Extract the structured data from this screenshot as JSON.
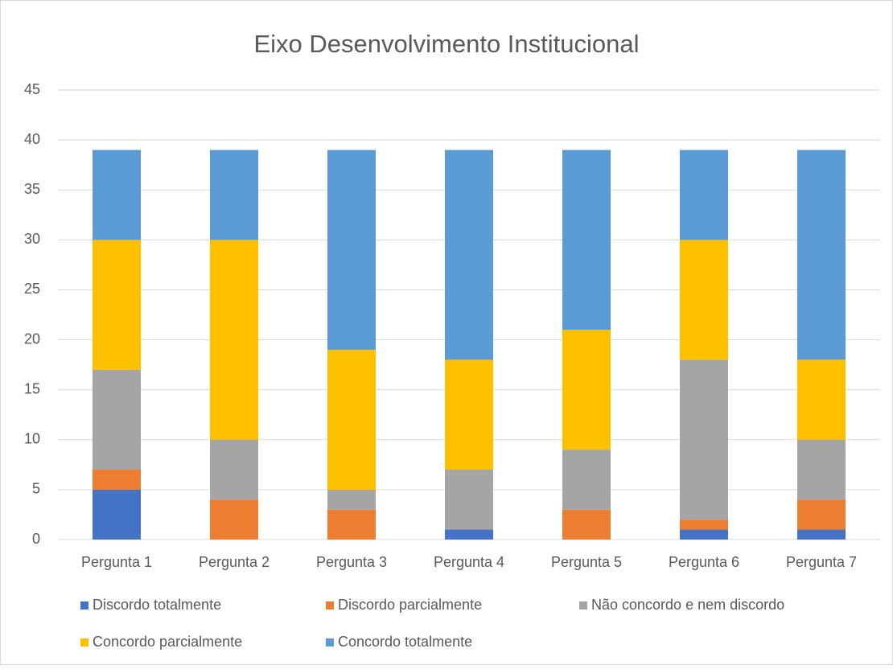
{
  "chart_data": {
    "type": "stacked_bar",
    "title": "Eixo Desenvolvimento Institucional",
    "categories": [
      "Pergunta 1",
      "Pergunta 2",
      "Pergunta 3",
      "Pergunta 4",
      "Pergunta 5",
      "Pergunta 6",
      "Pergunta 7"
    ],
    "series": [
      {
        "name": "Discordo totalmente",
        "color": "#4472c4",
        "values": [
          5,
          0,
          0,
          1,
          0,
          1,
          1
        ]
      },
      {
        "name": "Discordo parcialmente",
        "color": "#ed7d31",
        "values": [
          2,
          4,
          3,
          0,
          3,
          1,
          3
        ]
      },
      {
        "name": "Não concordo e nem discordo",
        "color": "#a5a5a5",
        "values": [
          10,
          6,
          2,
          6,
          6,
          16,
          6
        ]
      },
      {
        "name": "Concordo parcialmente",
        "color": "#ffc000",
        "values": [
          13,
          20,
          14,
          11,
          12,
          12,
          8
        ]
      },
      {
        "name": "Concordo totalmente",
        "color": "#5b9bd5",
        "values": [
          9,
          9,
          20,
          21,
          18,
          9,
          21
        ]
      }
    ],
    "ylim": [
      0,
      45
    ],
    "yticks": [
      0,
      5,
      10,
      15,
      20,
      25,
      30,
      35,
      40,
      45
    ],
    "grid": true,
    "legend": "bottom"
  }
}
